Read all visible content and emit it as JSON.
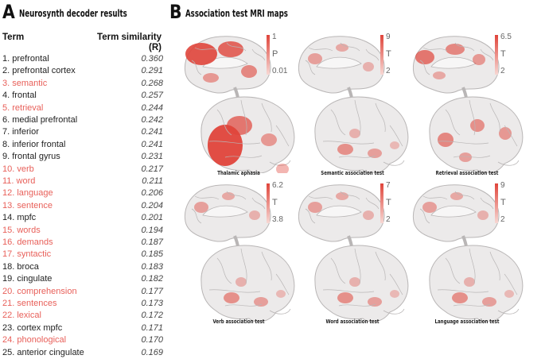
{
  "panel_a": {
    "letter": "A",
    "title": "Neurosynth decoder results",
    "col_term": "Term",
    "col_sim": "Term similarity",
    "col_sim_unit": "(R)",
    "highlight_color": "#e8605a",
    "rows": [
      {
        "term": "1. prefrontal",
        "value": "0.360",
        "hl": false
      },
      {
        "term": "2. prefrontal cortex",
        "value": "0.291",
        "hl": false
      },
      {
        "term": "3. semantic",
        "value": "0.268",
        "hl": true
      },
      {
        "term": "4. frontal",
        "value": "0.257",
        "hl": false
      },
      {
        "term": "5. retrieval",
        "value": "0.244",
        "hl": true
      },
      {
        "term": "6. medial prefrontal",
        "value": "0.242",
        "hl": false
      },
      {
        "term": "7. inferior",
        "value": "0.241",
        "hl": false
      },
      {
        "term": "8. inferior frontal",
        "value": "0.241",
        "hl": false
      },
      {
        "term": "9. frontal gyrus",
        "value": "0.231",
        "hl": false
      },
      {
        "term": "10. verb",
        "value": "0.217",
        "hl": true
      },
      {
        "term": "11. word",
        "value": "0.211",
        "hl": true
      },
      {
        "term": "12. language",
        "value": "0.206",
        "hl": true
      },
      {
        "term": "13. sentence",
        "value": "0.204",
        "hl": true
      },
      {
        "term": "14. mpfc",
        "value": "0.201",
        "hl": false
      },
      {
        "term": "15. words",
        "value": "0.194",
        "hl": true
      },
      {
        "term": "16. demands",
        "value": "0.187",
        "hl": true
      },
      {
        "term": "17. syntactic",
        "value": "0.185",
        "hl": true
      },
      {
        "term": "18. broca",
        "value": "0.183",
        "hl": false
      },
      {
        "term": "19. cingulate",
        "value": "0.182",
        "hl": false
      },
      {
        "term": "20. comprehension",
        "value": "0.177",
        "hl": true
      },
      {
        "term": "21. sentences",
        "value": "0.173",
        "hl": true
      },
      {
        "term": "22. lexical",
        "value": "0.172",
        "hl": true
      },
      {
        "term": "23. cortex mpfc",
        "value": "0.171",
        "hl": false
      },
      {
        "term": "24. phonological",
        "value": "0.170",
        "hl": true
      },
      {
        "term": "25. anterior cingulate",
        "value": "0.169",
        "hl": false
      }
    ]
  },
  "panel_b": {
    "letter": "B",
    "title": "Association test MRI maps",
    "maps": [
      {
        "caption": "Thalamic aphasia",
        "cb_max": "1",
        "cb_label": "P",
        "cb_min": "0.01",
        "intensity": "high"
      },
      {
        "caption": "Semantic association test",
        "cb_max": "9",
        "cb_label": "T",
        "cb_min": "2",
        "intensity": "low"
      },
      {
        "caption": "Retrieval association test",
        "cb_max": "6.5",
        "cb_label": "T",
        "cb_min": "2",
        "intensity": "medium"
      },
      {
        "caption": "Verb association test",
        "cb_max": "6.2",
        "cb_label": "T",
        "cb_min": "3.8",
        "intensity": "low"
      },
      {
        "caption": "Word association test",
        "cb_max": "7",
        "cb_label": "T",
        "cb_min": "2",
        "intensity": "low"
      },
      {
        "caption": "Language association test",
        "cb_max": "9",
        "cb_label": "T",
        "cb_min": "2",
        "intensity": "low"
      }
    ],
    "colors": {
      "brain": "#eceaea",
      "outline": "#b9b6b6",
      "activation": "#e0453b",
      "colorbar_top": "#e0453b",
      "colorbar_bottom": "#f7d8d4"
    }
  }
}
